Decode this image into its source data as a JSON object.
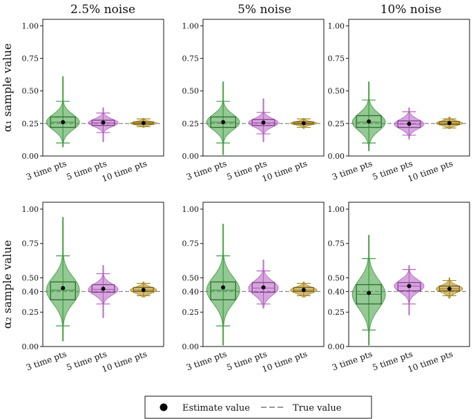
{
  "chart_data": {
    "type": "violin",
    "column_titles": [
      "2.5% noise",
      "5% noise",
      "10% noise"
    ],
    "row_ylabels": [
      "α₁ sample value",
      "α₂ sample value"
    ],
    "categories": [
      "3 time pts",
      "5 time pts",
      "10 time pts"
    ],
    "series_colors": {
      "3 time pts": "#3c9a3c",
      "5 time pts": "#b45fc1",
      "10 time pts": "#a8861a"
    },
    "legend": {
      "estimate_label": "Estimate value",
      "true_label": "True value",
      "placement": "bottom-center"
    },
    "rows": [
      {
        "ylim": [
          0,
          1.05
        ],
        "yticks": [
          0.0,
          0.25,
          0.5,
          0.75,
          1.0
        ],
        "ytick_labels": [
          "0.00",
          "0.25",
          "0.50",
          "0.75",
          "1.00"
        ],
        "true_value": 0.25,
        "panels": [
          {
            "violins": [
              {
                "q1": 0.22,
                "median": 0.26,
                "q3": 0.3,
                "whisker_low": 0.1,
                "whisker_high": 0.42,
                "min": 0.07,
                "max": 0.61,
                "estimate": 0.26,
                "width": 1.0
              },
              {
                "q1": 0.235,
                "median": 0.255,
                "q3": 0.275,
                "whisker_low": 0.18,
                "whisker_high": 0.33,
                "min": 0.11,
                "max": 0.37,
                "estimate": 0.257,
                "width": 0.9
              },
              {
                "q1": 0.245,
                "median": 0.252,
                "q3": 0.262,
                "whisker_low": 0.225,
                "whisker_high": 0.285,
                "min": 0.22,
                "max": 0.29,
                "estimate": 0.253,
                "width": 0.8
              }
            ]
          },
          {
            "violins": [
              {
                "q1": 0.22,
                "median": 0.26,
                "q3": 0.3,
                "whisker_low": 0.1,
                "whisker_high": 0.42,
                "min": 0.01,
                "max": 0.57,
                "estimate": 0.26,
                "width": 1.0
              },
              {
                "q1": 0.235,
                "median": 0.255,
                "q3": 0.28,
                "whisker_low": 0.17,
                "whisker_high": 0.335,
                "min": 0.11,
                "max": 0.44,
                "estimate": 0.257,
                "width": 0.9
              },
              {
                "q1": 0.245,
                "median": 0.252,
                "q3": 0.262,
                "whisker_low": 0.22,
                "whisker_high": 0.285,
                "min": 0.21,
                "max": 0.29,
                "estimate": 0.252,
                "width": 0.8
              }
            ]
          },
          {
            "violins": [
              {
                "q1": 0.22,
                "median": 0.26,
                "q3": 0.31,
                "whisker_low": 0.1,
                "whisker_high": 0.43,
                "min": 0.04,
                "max": 0.57,
                "estimate": 0.265,
                "width": 1.0
              },
              {
                "q1": 0.22,
                "median": 0.245,
                "q3": 0.27,
                "whisker_low": 0.16,
                "whisker_high": 0.34,
                "min": 0.13,
                "max": 0.37,
                "estimate": 0.247,
                "width": 0.9
              },
              {
                "q1": 0.242,
                "median": 0.252,
                "q3": 0.265,
                "whisker_low": 0.215,
                "whisker_high": 0.285,
                "min": 0.21,
                "max": 0.3,
                "estimate": 0.253,
                "width": 0.8
              }
            ]
          }
        ]
      },
      {
        "ylim": [
          0,
          1.05
        ],
        "yticks": [
          0.0,
          0.25,
          0.4,
          0.5,
          0.75,
          1.0
        ],
        "ytick_labels": [
          "0.00",
          "0.25",
          "0.40",
          "0.50",
          "0.75",
          "1.00"
        ],
        "true_value": 0.4,
        "panels": [
          {
            "violins": [
              {
                "q1": 0.34,
                "median": 0.41,
                "q3": 0.47,
                "whisker_low": 0.15,
                "whisker_high": 0.66,
                "min": 0.04,
                "max": 0.94,
                "estimate": 0.425,
                "width": 1.0
              },
              {
                "q1": 0.395,
                "median": 0.415,
                "q3": 0.45,
                "whisker_low": 0.31,
                "whisker_high": 0.53,
                "min": 0.21,
                "max": 0.59,
                "estimate": 0.42,
                "width": 0.9
              },
              {
                "q1": 0.4,
                "median": 0.41,
                "q3": 0.43,
                "whisker_low": 0.37,
                "whisker_high": 0.46,
                "min": 0.36,
                "max": 0.47,
                "estimate": 0.412,
                "width": 0.8
              }
            ]
          },
          {
            "violins": [
              {
                "q1": 0.34,
                "median": 0.41,
                "q3": 0.47,
                "whisker_low": 0.15,
                "whisker_high": 0.66,
                "min": 0.01,
                "max": 0.89,
                "estimate": 0.43,
                "width": 1.0
              },
              {
                "q1": 0.395,
                "median": 0.425,
                "q3": 0.465,
                "whisker_low": 0.31,
                "whisker_high": 0.55,
                "min": 0.28,
                "max": 0.63,
                "estimate": 0.43,
                "width": 0.9
              },
              {
                "q1": 0.4,
                "median": 0.41,
                "q3": 0.43,
                "whisker_low": 0.37,
                "whisker_high": 0.46,
                "min": 0.36,
                "max": 0.47,
                "estimate": 0.412,
                "width": 0.8
              }
            ]
          },
          {
            "violins": [
              {
                "q1": 0.31,
                "median": 0.38,
                "q3": 0.45,
                "whisker_low": 0.12,
                "whisker_high": 0.64,
                "min": 0.01,
                "max": 0.81,
                "estimate": 0.39,
                "width": 1.0
              },
              {
                "q1": 0.405,
                "median": 0.44,
                "q3": 0.465,
                "whisker_low": 0.31,
                "whisker_high": 0.56,
                "min": 0.23,
                "max": 0.59,
                "estimate": 0.44,
                "width": 0.9
              },
              {
                "q1": 0.405,
                "median": 0.42,
                "q3": 0.44,
                "whisker_low": 0.37,
                "whisker_high": 0.48,
                "min": 0.35,
                "max": 0.5,
                "estimate": 0.42,
                "width": 0.8
              }
            ]
          }
        ]
      }
    ]
  }
}
